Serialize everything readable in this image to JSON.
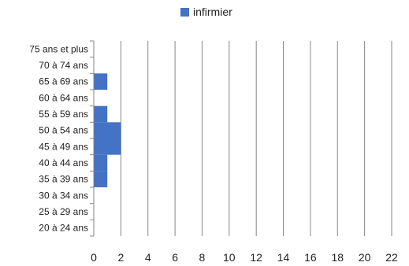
{
  "chart_data": {
    "type": "bar",
    "orientation": "horizontal",
    "categories": [
      "20 à 24 ans",
      "25 à 29 ans",
      "30 à 34 ans",
      "35 à 39 ans",
      "40 à 44 ans",
      "45 à 49 ans",
      "50 à 54 ans",
      "55 à 59 ans",
      "60 à 64 ans",
      "65 à 69 ans",
      "70 à 74 ans",
      "75 ans et plus"
    ],
    "series": [
      {
        "name": "infirmier",
        "values": [
          0,
          0,
          0,
          1,
          1,
          2,
          2,
          1,
          0,
          1,
          0,
          0
        ]
      }
    ],
    "xlim": [
      0,
      22
    ],
    "xticks": [
      0,
      2,
      4,
      6,
      8,
      10,
      12,
      14,
      16,
      18,
      20,
      22
    ],
    "grid": "vertical",
    "legend_position": "top",
    "colors": {
      "bar": "#4472C4",
      "grid": "#868686",
      "axis": "#868686"
    }
  }
}
